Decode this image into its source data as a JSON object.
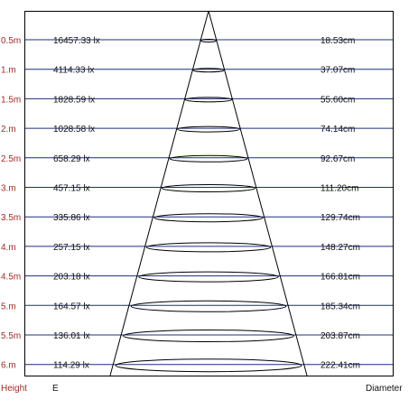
{
  "colors": {
    "height_label": "#a52a2a",
    "grid_line": "#1f2f7a",
    "frame": "#000000",
    "beam": "#000000",
    "text": "#111111"
  },
  "chart_data": {
    "type": "table",
    "rows": [
      {
        "height": "0.5m",
        "illuminance": "16457.33 lx",
        "diameter": "18.53cm"
      },
      {
        "height": "1.m",
        "illuminance": "4114.33 lx",
        "diameter": "37.07cm"
      },
      {
        "height": "1.5m",
        "illuminance": "1828.59 lx",
        "diameter": "55.60cm"
      },
      {
        "height": "2.m",
        "illuminance": "1028.58 lx",
        "diameter": "74.14cm"
      },
      {
        "height": "2.5m",
        "illuminance": "658.29 lx",
        "diameter": "92.67cm"
      },
      {
        "height": "3.m",
        "illuminance": "457.15 lx",
        "diameter": "111.20cm"
      },
      {
        "height": "3.5m",
        "illuminance": "335.86 lx",
        "diameter": "129.74cm"
      },
      {
        "height": "4.m",
        "illuminance": "257.15 lx",
        "diameter": "148.27cm"
      },
      {
        "height": "4.5m",
        "illuminance": "203.18 lx",
        "diameter": "166.81cm"
      },
      {
        "height": "5.m",
        "illuminance": "164.57 lx",
        "diameter": "185.34cm"
      },
      {
        "height": "5.5m",
        "illuminance": "136.01 lx",
        "diameter": "203.87cm"
      },
      {
        "height": "6.m",
        "illuminance": "114.29 lx",
        "diameter": "222.41cm"
      }
    ],
    "footer": {
      "height_label": "Height",
      "illuminance_label": "E",
      "diameter_label": "Diameter"
    }
  }
}
